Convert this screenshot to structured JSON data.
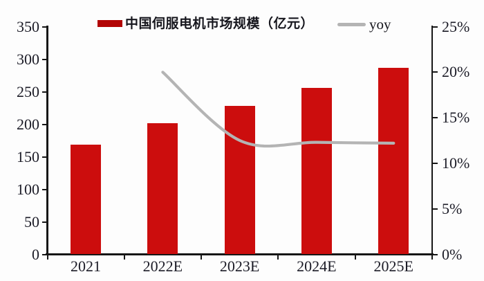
{
  "legend": {
    "bar_label": "中国伺服电机市场规模（亿元）",
    "line_label": "yoy",
    "bar_swatch_color": "#B20505",
    "line_swatch_color": "#B4B4B4"
  },
  "colors": {
    "bar": "#CC0D0D",
    "line": "#B4B4B4",
    "axis": "#161616",
    "text": "#1B1B26",
    "background": "#FDFDFD"
  },
  "chart_data": {
    "type": "bar",
    "subtype": "bar-with-line-overlay",
    "categories": [
      "2021",
      "2022E",
      "2023E",
      "2024E",
      "2025E"
    ],
    "series": [
      {
        "name": "中国伺服电机市场规模（亿元）",
        "type": "bar",
        "axis": "left",
        "color": "#CC0D0D",
        "values": [
          169,
          202,
          228,
          256,
          287
        ]
      },
      {
        "name": "yoy",
        "type": "line",
        "axis": "right",
        "color": "#B4B4B4",
        "smoothed": true,
        "values": [
          null,
          20.0,
          12.5,
          12.3,
          12.2
        ],
        "unit": "%"
      }
    ],
    "left_axis": {
      "min": 0,
      "max": 350,
      "step": 50,
      "ticks": [
        "0",
        "50",
        "100",
        "150",
        "200",
        "250",
        "300",
        "350"
      ]
    },
    "right_axis": {
      "min": 0,
      "max": 25,
      "step": 5,
      "ticks": [
        "0%",
        "5%",
        "10%",
        "15%",
        "20%",
        "25%"
      ]
    },
    "grid": false,
    "legend_position": "top"
  }
}
